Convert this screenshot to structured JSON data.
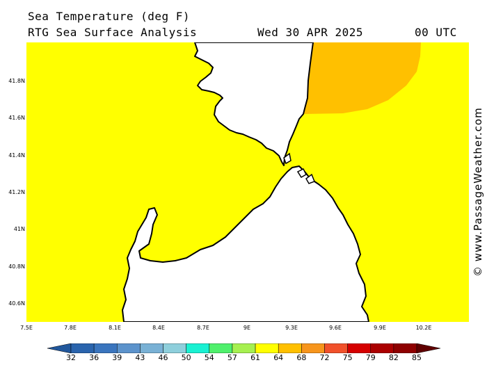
{
  "header": {
    "title": "Sea Temperature (deg F)",
    "subtitle": "RTG Sea Surface Analysis",
    "date": "Wed 30 APR 2025",
    "time": "00 UTC"
  },
  "map": {
    "lat_labels": [
      "41.8N",
      "41.6N",
      "41.4N",
      "41.2N",
      "41N",
      "40.8N",
      "40.6N"
    ],
    "lon_labels": [
      "7.5E",
      "7.8E",
      "8.1E",
      "8.4E",
      "8.7E",
      "9E",
      "9.3E",
      "9.6E",
      "9.9E",
      "10.2E"
    ],
    "sea_color": "#ffff00",
    "warm_patch_color": "#ffc000",
    "land_color": "#ffffff",
    "coast_color": "#000000"
  },
  "credit": "© www.PassageWeather.com",
  "color_scale": {
    "labels": [
      "32",
      "36",
      "39",
      "43",
      "46",
      "50",
      "54",
      "57",
      "61",
      "64",
      "68",
      "72",
      "75",
      "79",
      "82",
      "85"
    ],
    "colors": [
      "#21579c",
      "#2a64ad",
      "#3a75be",
      "#5c93cc",
      "#79b1d5",
      "#8ecfdc",
      "#19f1d2",
      "#4ff06c",
      "#a6f050",
      "#ffff00",
      "#ffc000",
      "#f7951c",
      "#f1512b",
      "#d50000",
      "#ab0000",
      "#8e0000",
      "#600000"
    ]
  }
}
